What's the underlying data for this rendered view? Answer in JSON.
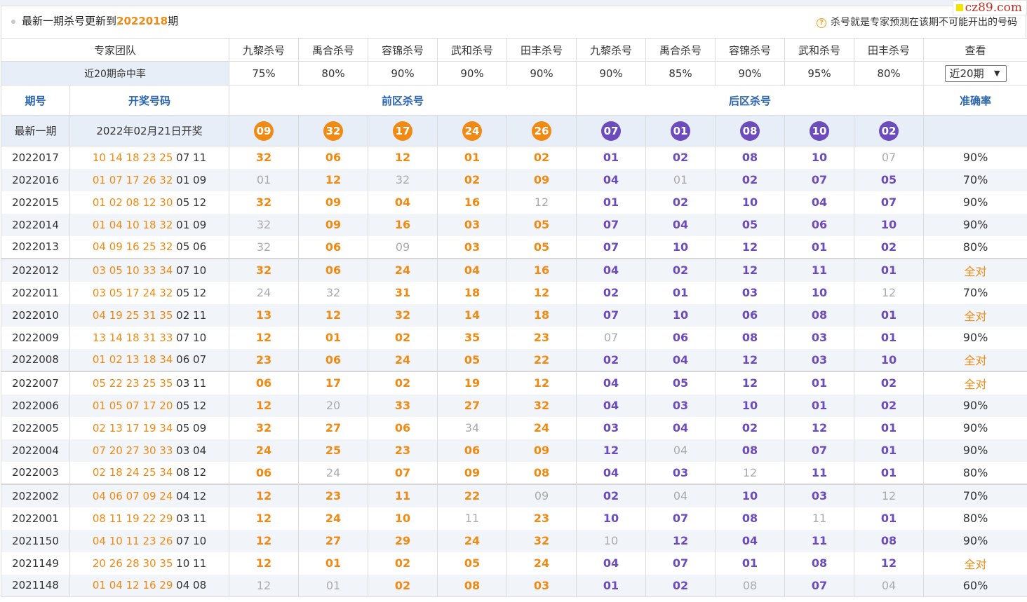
{
  "logo": "cz89.com",
  "header": {
    "notice_prefix": "最新一期杀号更新到",
    "notice_issue": "2022018",
    "notice_suffix": "期",
    "tip": "杀号就是专家预测在该期不可能开出的号码"
  },
  "experts_label": "专家团队",
  "experts": [
    "九黎杀号",
    "禹合杀号",
    "容锦杀号",
    "武和杀号",
    "田丰杀号",
    "九黎杀号",
    "禹合杀号",
    "容锦杀号",
    "武和杀号",
    "田丰杀号"
  ],
  "view_label": "查看",
  "rate_label": "近20期命中率",
  "rates": [
    "75%",
    "80%",
    "90%",
    "90%",
    "90%",
    "90%",
    "85%",
    "90%",
    "95%",
    "80%"
  ],
  "select_value": "近20期",
  "section": {
    "period": "期号",
    "draw": "开奖号码",
    "front": "前区杀号",
    "back": "后区杀号",
    "accuracy": "准确率"
  },
  "latest": {
    "label": "最新一期",
    "date": "2022年02月21日开奖",
    "front": [
      "09",
      "32",
      "17",
      "24",
      "26"
    ],
    "back": [
      "07",
      "01",
      "08",
      "10",
      "02"
    ]
  },
  "rows": [
    {
      "period": "2022017",
      "df": "10 14 18 23 25",
      "db": "07 11",
      "f": [
        "32",
        "06",
        "12",
        "01",
        "02"
      ],
      "fm": [
        0,
        0,
        0,
        0,
        0
      ],
      "b": [
        "01",
        "02",
        "08",
        "10",
        "07"
      ],
      "bm": [
        0,
        0,
        0,
        0,
        1
      ],
      "acc": "90%"
    },
    {
      "period": "2022016",
      "df": "01 07 17 26 32",
      "db": "01 09",
      "f": [
        "01",
        "12",
        "32",
        "02",
        "09"
      ],
      "fm": [
        1,
        0,
        1,
        0,
        0
      ],
      "b": [
        "04",
        "01",
        "02",
        "07",
        "05"
      ],
      "bm": [
        0,
        1,
        0,
        0,
        0
      ],
      "acc": "70%"
    },
    {
      "period": "2022015",
      "df": "01 02 08 12 30",
      "db": "05 12",
      "f": [
        "32",
        "09",
        "04",
        "16",
        "12"
      ],
      "fm": [
        0,
        0,
        0,
        0,
        1
      ],
      "b": [
        "01",
        "02",
        "10",
        "04",
        "07"
      ],
      "bm": [
        0,
        0,
        0,
        0,
        0
      ],
      "acc": "90%"
    },
    {
      "period": "2022014",
      "df": "01 04 10 18 32",
      "db": "01 09",
      "f": [
        "32",
        "09",
        "16",
        "03",
        "05"
      ],
      "fm": [
        1,
        0,
        0,
        0,
        0
      ],
      "b": [
        "07",
        "04",
        "05",
        "06",
        "10"
      ],
      "bm": [
        0,
        0,
        0,
        0,
        0
      ],
      "acc": "90%"
    },
    {
      "period": "2022013",
      "df": "04 09 16 25 32",
      "db": "05 06",
      "f": [
        "32",
        "06",
        "09",
        "03",
        "05"
      ],
      "fm": [
        1,
        0,
        1,
        0,
        0
      ],
      "b": [
        "07",
        "10",
        "12",
        "01",
        "02"
      ],
      "bm": [
        0,
        0,
        0,
        0,
        0
      ],
      "acc": "80%"
    },
    {
      "period": "2022012",
      "df": "03 05 10 33 34",
      "db": "07 10",
      "f": [
        "32",
        "06",
        "24",
        "04",
        "16"
      ],
      "fm": [
        0,
        0,
        0,
        0,
        0
      ],
      "b": [
        "04",
        "02",
        "12",
        "11",
        "01"
      ],
      "bm": [
        0,
        0,
        0,
        0,
        0
      ],
      "acc": "全对"
    },
    {
      "period": "2022011",
      "df": "03 05 17 24 32",
      "db": "05 12",
      "f": [
        "24",
        "32",
        "31",
        "18",
        "12"
      ],
      "fm": [
        1,
        1,
        0,
        0,
        0
      ],
      "b": [
        "02",
        "01",
        "03",
        "10",
        "12"
      ],
      "bm": [
        0,
        0,
        0,
        0,
        1
      ],
      "acc": "70%"
    },
    {
      "period": "2022010",
      "df": "04 19 25 31 35",
      "db": "02 11",
      "f": [
        "13",
        "12",
        "32",
        "14",
        "18"
      ],
      "fm": [
        0,
        0,
        0,
        0,
        0
      ],
      "b": [
        "07",
        "10",
        "06",
        "08",
        "01"
      ],
      "bm": [
        0,
        0,
        0,
        0,
        0
      ],
      "acc": "全对"
    },
    {
      "period": "2022009",
      "df": "13 14 18 31 33",
      "db": "07 10",
      "f": [
        "12",
        "01",
        "02",
        "35",
        "23"
      ],
      "fm": [
        0,
        0,
        0,
        0,
        0
      ],
      "b": [
        "07",
        "06",
        "08",
        "03",
        "01"
      ],
      "bm": [
        1,
        0,
        0,
        0,
        0
      ],
      "acc": "90%"
    },
    {
      "period": "2022008",
      "df": "01 02 13 18 34",
      "db": "06 07",
      "f": [
        "23",
        "06",
        "24",
        "05",
        "22"
      ],
      "fm": [
        0,
        0,
        0,
        0,
        0
      ],
      "b": [
        "02",
        "04",
        "12",
        "03",
        "10"
      ],
      "bm": [
        0,
        0,
        0,
        0,
        0
      ],
      "acc": "全对"
    },
    {
      "period": "2022007",
      "df": "05 22 23 25 35",
      "db": "03 11",
      "f": [
        "06",
        "17",
        "02",
        "19",
        "12"
      ],
      "fm": [
        0,
        0,
        0,
        0,
        0
      ],
      "b": [
        "04",
        "05",
        "12",
        "01",
        "02"
      ],
      "bm": [
        0,
        0,
        0,
        0,
        0
      ],
      "acc": "全对"
    },
    {
      "period": "2022006",
      "df": "01 05 07 17 20",
      "db": "05 12",
      "f": [
        "12",
        "20",
        "33",
        "27",
        "32"
      ],
      "fm": [
        0,
        1,
        0,
        0,
        0
      ],
      "b": [
        "04",
        "03",
        "10",
        "01",
        "02"
      ],
      "bm": [
        0,
        0,
        0,
        0,
        0
      ],
      "acc": "90%"
    },
    {
      "period": "2022005",
      "df": "02 13 17 19 34",
      "db": "05 09",
      "f": [
        "32",
        "27",
        "06",
        "34",
        "24"
      ],
      "fm": [
        0,
        0,
        0,
        1,
        0
      ],
      "b": [
        "03",
        "04",
        "02",
        "12",
        "01"
      ],
      "bm": [
        0,
        0,
        0,
        0,
        0
      ],
      "acc": "90%"
    },
    {
      "period": "2022004",
      "df": "07 20 27 30 33",
      "db": "03 04",
      "f": [
        "24",
        "25",
        "23",
        "06",
        "09"
      ],
      "fm": [
        0,
        0,
        0,
        0,
        0
      ],
      "b": [
        "12",
        "04",
        "08",
        "07",
        "01"
      ],
      "bm": [
        0,
        1,
        0,
        0,
        0
      ],
      "acc": "90%"
    },
    {
      "period": "2022003",
      "df": "02 18 24 25 34",
      "db": "08 12",
      "f": [
        "06",
        "24",
        "07",
        "09",
        "08"
      ],
      "fm": [
        0,
        1,
        0,
        0,
        0
      ],
      "b": [
        "04",
        "03",
        "12",
        "11",
        "01"
      ],
      "bm": [
        0,
        0,
        1,
        0,
        0
      ],
      "acc": "80%"
    },
    {
      "period": "2022002",
      "df": "04 06 07 09 24",
      "db": "04 12",
      "f": [
        "12",
        "23",
        "11",
        "22",
        "09"
      ],
      "fm": [
        0,
        0,
        0,
        0,
        1
      ],
      "b": [
        "02",
        "04",
        "10",
        "03",
        "12"
      ],
      "bm": [
        0,
        1,
        0,
        0,
        1
      ],
      "acc": "70%"
    },
    {
      "period": "2022001",
      "df": "08 11 19 22 29",
      "db": "03 11",
      "f": [
        "12",
        "24",
        "10",
        "11",
        "23"
      ],
      "fm": [
        0,
        0,
        0,
        1,
        0
      ],
      "b": [
        "10",
        "07",
        "08",
        "11",
        "01"
      ],
      "bm": [
        0,
        0,
        0,
        1,
        0
      ],
      "acc": "80%"
    },
    {
      "period": "2021150",
      "df": "04 10 11 23 26",
      "db": "07 10",
      "f": [
        "12",
        "27",
        "29",
        "24",
        "32"
      ],
      "fm": [
        0,
        0,
        0,
        0,
        0
      ],
      "b": [
        "10",
        "12",
        "04",
        "11",
        "08"
      ],
      "bm": [
        1,
        0,
        0,
        0,
        0
      ],
      "acc": "90%"
    },
    {
      "period": "2021149",
      "df": "20 26 28 30 35",
      "db": "10 11",
      "f": [
        "12",
        "01",
        "02",
        "05",
        "24"
      ],
      "fm": [
        0,
        0,
        0,
        0,
        0
      ],
      "b": [
        "04",
        "07",
        "01",
        "08",
        "12"
      ],
      "bm": [
        0,
        0,
        0,
        0,
        0
      ],
      "acc": "全对"
    },
    {
      "period": "2021148",
      "df": "01 04 12 16 29",
      "db": "04 08",
      "f": [
        "12",
        "01",
        "02",
        "08",
        "03"
      ],
      "fm": [
        1,
        1,
        0,
        0,
        0
      ],
      "b": [
        "01",
        "02",
        "08",
        "07",
        "04"
      ],
      "bm": [
        0,
        0,
        1,
        0,
        1
      ],
      "acc": "60%"
    }
  ]
}
